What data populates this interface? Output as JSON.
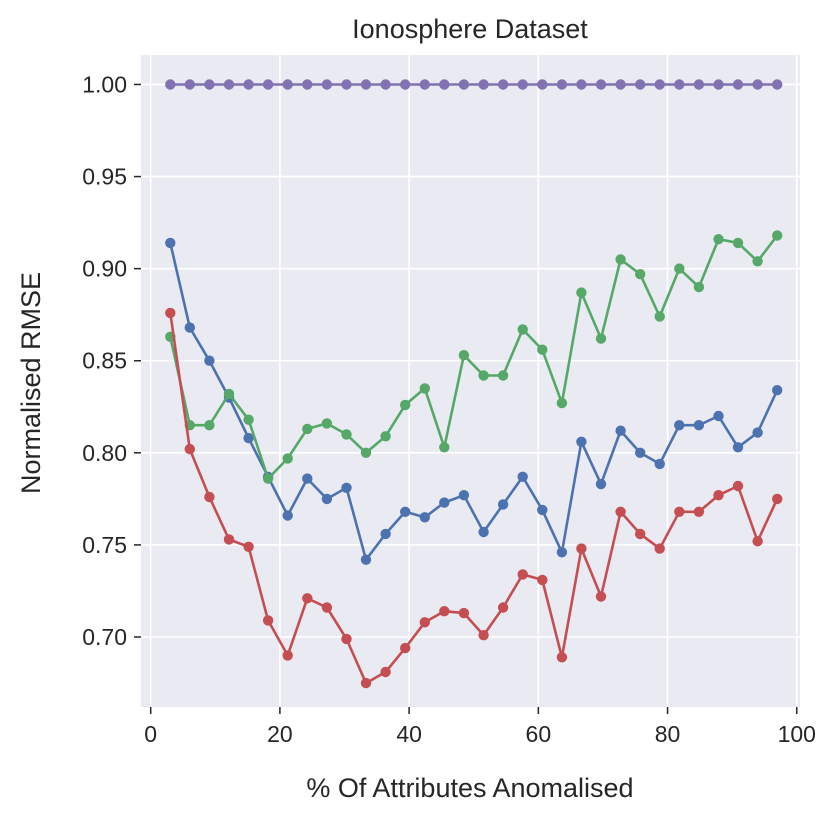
{
  "chart_data": {
    "type": "line",
    "title": "Ionosphere Dataset",
    "xlabel": "% Of Attributes Anomalised",
    "ylabel": "Normalised RMSE",
    "xlim": [
      -1.5,
      100.5
    ],
    "ylim": [
      0.662,
      1.016
    ],
    "grid": true,
    "xticks": [
      0,
      20,
      40,
      60,
      80,
      100
    ],
    "xtick_labels": [
      "0",
      "20",
      "40",
      "60",
      "80",
      "100"
    ],
    "yticks": [
      0.7,
      0.75,
      0.8,
      0.85,
      0.9,
      0.95,
      1.0
    ],
    "ytick_labels": [
      "0.70",
      "0.75",
      "0.80",
      "0.85",
      "0.90",
      "0.95",
      "1.00"
    ],
    "x": [
      3.03,
      6.06,
      9.09,
      12.12,
      15.15,
      18.18,
      21.21,
      24.24,
      27.27,
      30.3,
      33.33,
      36.36,
      39.39,
      42.42,
      45.45,
      48.48,
      51.52,
      54.55,
      57.58,
      60.61,
      63.64,
      66.67,
      69.7,
      72.73,
      75.76,
      78.79,
      81.82,
      84.85,
      87.88,
      90.91,
      93.94,
      96.97
    ],
    "series": [
      {
        "name": "blue",
        "color": "#4c72b0",
        "values": [
          0.914,
          0.868,
          0.85,
          0.83,
          0.808,
          0.787,
          0.766,
          0.786,
          0.775,
          0.781,
          0.742,
          0.756,
          0.768,
          0.765,
          0.773,
          0.777,
          0.757,
          0.772,
          0.787,
          0.769,
          0.746,
          0.806,
          0.783,
          0.812,
          0.8,
          0.794,
          0.815,
          0.815,
          0.82,
          0.803,
          0.811,
          0.834
        ]
      },
      {
        "name": "green",
        "color": "#55a868",
        "values": [
          0.863,
          0.815,
          0.815,
          0.832,
          0.818,
          0.786,
          0.797,
          0.813,
          0.816,
          0.81,
          0.8,
          0.809,
          0.826,
          0.835,
          0.803,
          0.853,
          0.842,
          0.842,
          0.867,
          0.856,
          0.827,
          0.887,
          0.862,
          0.905,
          0.897,
          0.874,
          0.9,
          0.89,
          0.916,
          0.914,
          0.904,
          0.918
        ]
      },
      {
        "name": "red",
        "color": "#c44e52",
        "values": [
          0.876,
          0.802,
          0.776,
          0.753,
          0.749,
          0.709,
          0.69,
          0.721,
          0.716,
          0.699,
          0.675,
          0.681,
          0.694,
          0.708,
          0.714,
          0.713,
          0.701,
          0.716,
          0.734,
          0.731,
          0.689,
          0.748,
          0.722,
          0.768,
          0.756,
          0.748,
          0.768,
          0.768,
          0.777,
          0.782,
          0.752,
          0.775
        ]
      },
      {
        "name": "purple",
        "color": "#8172b2",
        "values": [
          1.0,
          1.0,
          1.0,
          1.0,
          1.0,
          1.0,
          1.0,
          1.0,
          1.0,
          1.0,
          1.0,
          1.0,
          1.0,
          1.0,
          1.0,
          1.0,
          1.0,
          1.0,
          1.0,
          1.0,
          1.0,
          1.0,
          1.0,
          1.0,
          1.0,
          1.0,
          1.0,
          1.0,
          1.0,
          1.0,
          1.0,
          1.0
        ]
      }
    ],
    "colors": {
      "background": "#eaeaf2",
      "grid": "#ffffff",
      "axis_text": "#262626"
    }
  }
}
